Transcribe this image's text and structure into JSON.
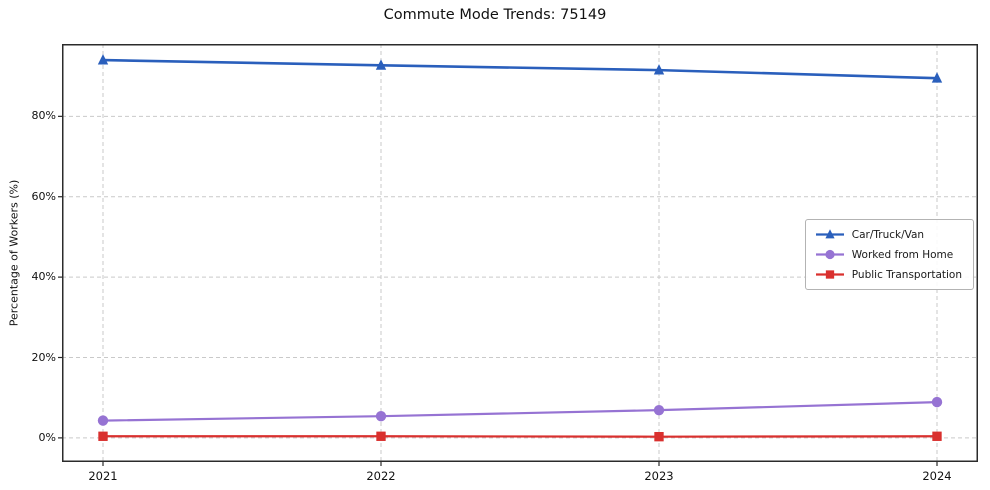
{
  "chart_data": {
    "type": "line",
    "title": "Commute Mode Trends: 75149",
    "xlabel": "",
    "ylabel": "Percentage of Workers (%)",
    "x": [
      2021,
      2022,
      2023,
      2024
    ],
    "xtick_labels": [
      "2021",
      "2022",
      "2023",
      "2024"
    ],
    "series": [
      {
        "name": "Car/Truck/Van",
        "color": "#2a5fbc",
        "marker": "triangle",
        "values": [
          94.0,
          92.7,
          91.5,
          89.5
        ]
      },
      {
        "name": "Worked from Home",
        "color": "#9673d3",
        "marker": "circle",
        "values": [
          4.3,
          5.4,
          6.9,
          8.9
        ]
      },
      {
        "name": "Public Transportation",
        "color": "#d9302e",
        "marker": "square",
        "values": [
          0.4,
          0.4,
          0.3,
          0.4
        ]
      }
    ],
    "yticks": [
      0,
      20,
      40,
      60,
      80
    ],
    "ytick_labels": [
      "0%",
      "20%",
      "40%",
      "60%",
      "80%"
    ],
    "ylim": [
      -6,
      98
    ],
    "grid": true,
    "grid_color": "#c9c9c9",
    "axis_border_color": "#2b2b2b",
    "legend_position": "center right"
  }
}
